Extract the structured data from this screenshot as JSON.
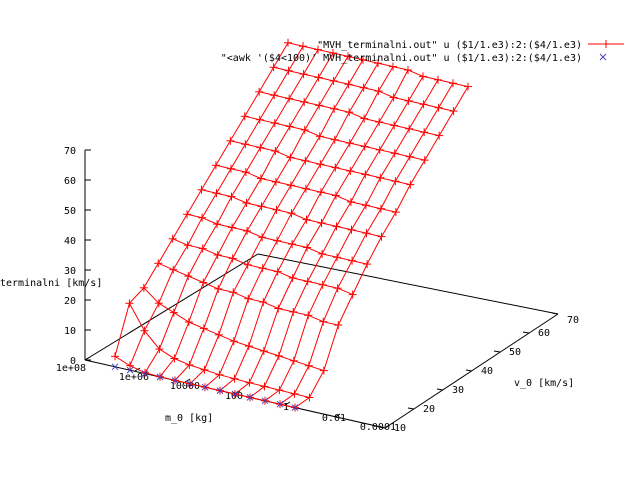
{
  "chart_data": {
    "type": "surface",
    "title": "",
    "xlabel": "m_0 [kg]",
    "ylabel": "v_0 [km/s]",
    "zlabel": "terminalni [km/s]",
    "x_scale": "log",
    "xlim": [
      0.0001,
      1000000
    ],
    "ylim": [
      10,
      70
    ],
    "zlim": [
      0,
      70
    ],
    "x_ticks": [
      "1e+08",
      "1e+06",
      "10000",
      "100",
      "1",
      "0.01",
      "0.0001"
    ],
    "y_ticks": [
      "10",
      "20",
      "30",
      "40",
      "50",
      "60",
      "70"
    ],
    "z_ticks": [
      "0",
      "10",
      "20",
      "30",
      "40",
      "50",
      "60",
      "70"
    ],
    "grid": false,
    "legend_position": "top-right",
    "series": [
      {
        "name": "\"MVH_terminalni.out\" u ($1/1.e3):2:($4/1.e3)",
        "style": "linespoints",
        "marker": "plus",
        "color": "#ff0000",
        "m0_values": [
          100000,
          31623,
          10000,
          3162,
          1000,
          316,
          100,
          31.6,
          10,
          3.16,
          1,
          0.316,
          0.1
        ],
        "v0_values": [
          10,
          15,
          20,
          25,
          30,
          35,
          40,
          45,
          50,
          55,
          60,
          65,
          70
        ],
        "terminal_velocity_rows": [
          [
            3.5,
            1.5,
            0.3,
            0.1,
            0.0,
            0.0,
            0.0,
            0.0,
            0.0,
            0.0,
            0.0,
            0.0,
            0.0
          ],
          [
            18,
            10,
            5,
            3,
            2,
            1.5,
            1.0,
            0.8,
            0.6,
            0.5,
            0.4,
            0.3,
            0.2
          ],
          [
            20,
            16,
            14,
            12,
            11,
            10,
            9,
            8.5,
            8,
            7.5,
            7,
            6.5,
            6
          ],
          [
            25,
            24,
            23,
            22,
            21,
            21,
            20,
            20,
            19,
            19,
            19,
            18,
            18
          ],
          [
            30,
            29,
            29,
            28,
            28,
            27,
            27,
            27,
            26,
            26,
            26,
            26,
            25
          ],
          [
            35,
            35,
            34,
            34,
            34,
            33,
            33,
            33,
            33,
            32,
            32,
            32,
            32
          ],
          [
            40,
            40,
            40,
            39,
            39,
            39,
            39,
            38,
            38,
            38,
            38,
            38,
            38
          ],
          [
            45,
            45,
            45,
            44,
            44,
            44,
            44,
            44,
            44,
            43,
            43,
            43,
            43
          ],
          [
            50,
            50,
            50,
            50,
            49,
            49,
            49,
            49,
            49,
            49,
            49,
            49,
            49
          ],
          [
            55,
            55,
            55,
            55,
            55,
            54,
            54,
            54,
            54,
            54,
            54,
            54,
            54
          ],
          [
            60,
            60,
            60,
            60,
            60,
            60,
            60,
            59,
            59,
            59,
            59,
            59,
            59
          ],
          [
            65,
            65,
            65,
            65,
            65,
            65,
            65,
            65,
            64,
            64,
            64,
            64,
            64
          ],
          [
            70,
            70,
            70,
            70,
            70,
            70,
            70,
            70,
            70,
            69,
            69,
            69,
            69
          ]
        ]
      },
      {
        "name": "\"<awk '($4<100)' MVH_terminalni.out\" u ($1/1.e3):2:($4/1.e3)",
        "style": "points",
        "marker": "cross",
        "color": "#4040c0",
        "points": [
          {
            "m0": 100000,
            "v0": 10,
            "v_term": 0.0
          },
          {
            "m0": 31623,
            "v0": 10,
            "v_term": 0.0
          },
          {
            "m0": 10000,
            "v0": 10,
            "v_term": 0.0
          },
          {
            "m0": 3162,
            "v0": 10,
            "v_term": 0.0
          },
          {
            "m0": 1000,
            "v0": 10,
            "v_term": 0.0
          },
          {
            "m0": 316,
            "v0": 10,
            "v_term": 0.0
          },
          {
            "m0": 100,
            "v0": 10,
            "v_term": 0.0
          },
          {
            "m0": 31.6,
            "v0": 10,
            "v_term": 0.0
          },
          {
            "m0": 10,
            "v0": 10,
            "v_term": 0.0
          },
          {
            "m0": 3.16,
            "v0": 10,
            "v_term": 0.0
          },
          {
            "m0": 1,
            "v0": 10,
            "v_term": 0.0
          },
          {
            "m0": 0.316,
            "v0": 10,
            "v_term": 0.0
          },
          {
            "m0": 0.1,
            "v0": 10,
            "v_term": 0.0
          }
        ]
      }
    ]
  }
}
